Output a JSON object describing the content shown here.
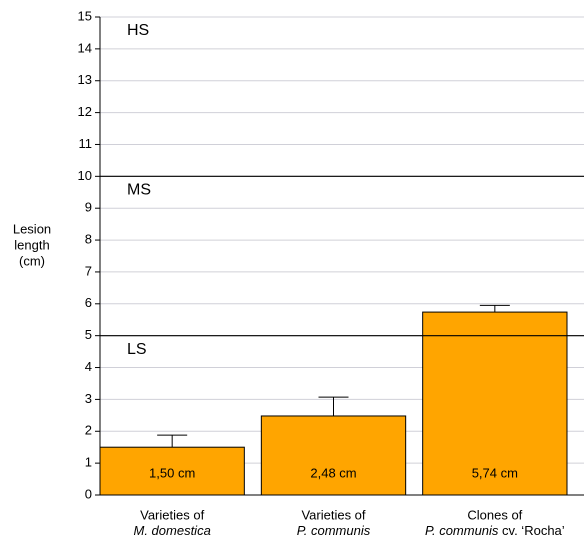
{
  "chart_data": {
    "type": "bar",
    "y_label": [
      "Lesion",
      "length",
      "(cm)"
    ],
    "categories": [
      {
        "line1": "Varieties of",
        "line2": [
          {
            "text": "M. domestica",
            "italic": true
          }
        ]
      },
      {
        "line1": "Varieties of",
        "line2": [
          {
            "text": "P. communis",
            "italic": true
          }
        ]
      },
      {
        "line1": "Clones of",
        "line2": [
          {
            "text": "P. communis",
            "italic": true
          },
          {
            "text": " cv. ‘Rocha’",
            "italic": false
          }
        ]
      }
    ],
    "values": [
      1.5,
      2.48,
      5.74
    ],
    "value_labels": [
      "1,50 cm",
      "2,48 cm",
      "5,74 cm"
    ],
    "errors": [
      0.38,
      0.59,
      0.21
    ],
    "color": "#ffa500",
    "thresholds": [
      5,
      10
    ],
    "zones": [
      "HS",
      "MS",
      "LS"
    ],
    "ylim": [
      0,
      15
    ],
    "yticks": [
      0,
      1,
      2,
      3,
      4,
      5,
      6,
      7,
      8,
      9,
      10,
      11,
      12,
      13,
      14,
      15
    ],
    "grid": true
  }
}
